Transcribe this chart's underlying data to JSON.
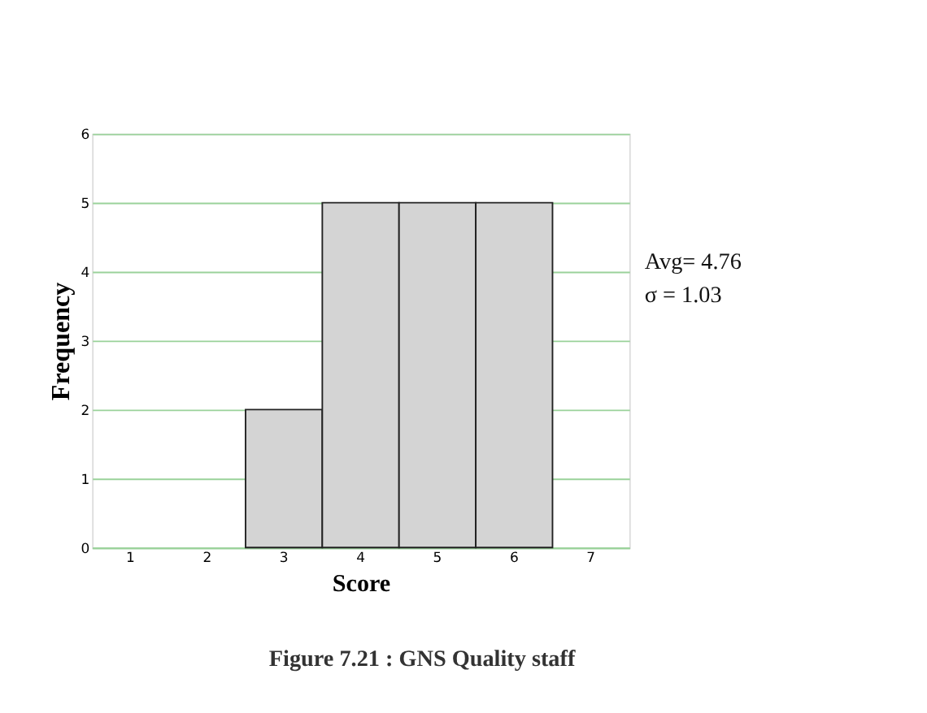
{
  "chart_data": {
    "type": "bar",
    "xlabel": "Score",
    "ylabel": "Frequency",
    "categories": [
      "1",
      "2",
      "3",
      "4",
      "5",
      "6",
      "7"
    ],
    "values": [
      0,
      0,
      2,
      5,
      5,
      5,
      0
    ],
    "color": "#d4d4d4",
    "ylim": [
      0,
      6
    ],
    "yticks": [
      0,
      1,
      2,
      3,
      4,
      5,
      6
    ],
    "grid": "y",
    "annotations": [
      "Avg= 4.76",
      "σ   = 1.03",
      "Figure 7.21 : GNS Quality staff"
    ]
  }
}
